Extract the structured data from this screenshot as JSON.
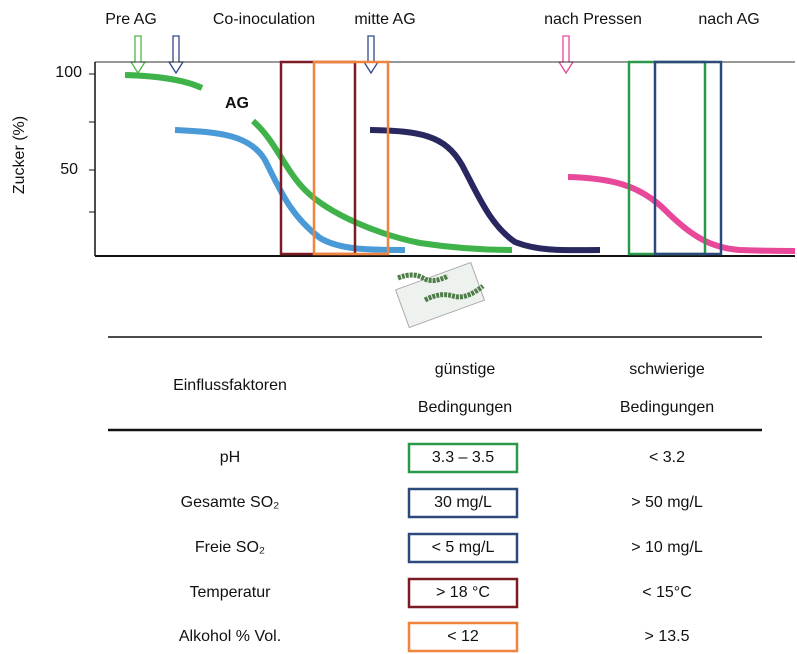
{
  "chart": {
    "stage_labels": [
      "Pre AG",
      "Co-inoculation",
      "mitte AG",
      "nach Pressen",
      "nach AG"
    ],
    "y_axis_label": "Zucker (%)",
    "y_tick_labels": [
      "100",
      "50"
    ],
    "curve_label": "AG"
  },
  "table": {
    "header": [
      "Einflussfaktoren",
      "günstige",
      "Bedingungen",
      "schwierige",
      "Bedingungen"
    ],
    "rows": [
      [
        "pH",
        "3.3 – 3.5",
        "< 3.2"
      ],
      [
        "Gesamte SO₂",
        "30 mg/L",
        "> 50 mg/L"
      ],
      [
        "Freie SO₂",
        "< 5 mg/L",
        "> 10 mg/L"
      ],
      [
        "Temperatur",
        "> 18 °C",
        "< 15°C"
      ],
      [
        "Alkohol % Vol.",
        "< 12",
        "> 13.5"
      ]
    ]
  }
}
